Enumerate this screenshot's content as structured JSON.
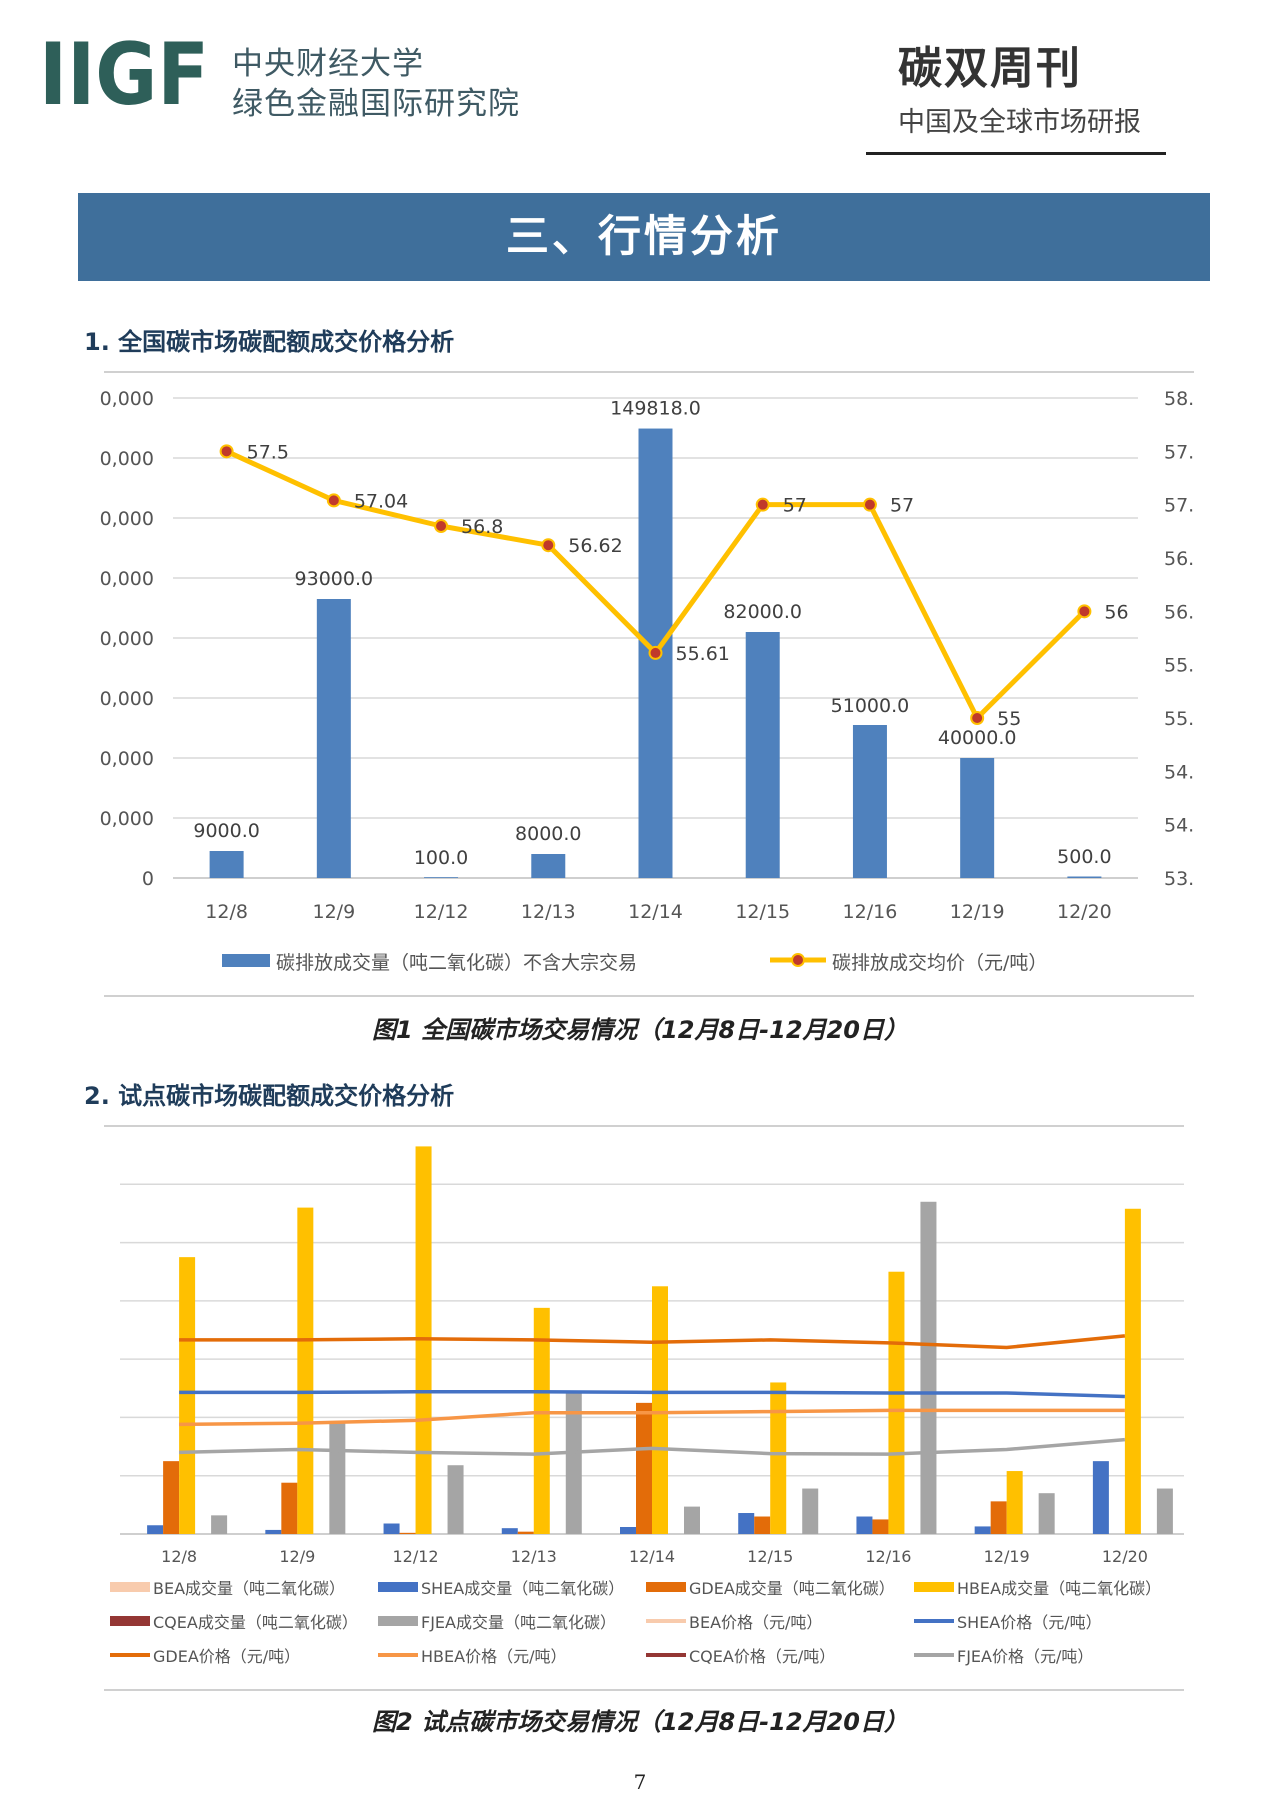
{
  "header": {
    "logo_text": "IIGF",
    "org_line1": "中央财经大学",
    "org_line2": "绿色金融国际研究院",
    "pub_title": "碳双周刊",
    "pub_subtitle": "中国及全球市场研报"
  },
  "section_banner": "三、行情分析",
  "section1_title": "1. 全国碳市场碳配额成交价格分析",
  "section2_title": "2. 试点碳市场碳配额成交价格分析",
  "fig1_caption": "图1 全国碳市场交易情况（12月8日-12月20日）",
  "fig2_caption": "图2 试点碳市场交易情况（12月8日-12月20日）",
  "page_number": "7",
  "colors": {
    "bar_blue": "#4f81bd",
    "line_yellow": "#ffc000",
    "point_red": "#c0392b",
    "banner": "#3f6f9b"
  },
  "chart_data": [
    {
      "type": "bar",
      "categories": [
        "12/8",
        "12/9",
        "12/12",
        "12/13",
        "12/14",
        "12/15",
        "12/16",
        "12/19",
        "12/20"
      ],
      "left_axis_ticks": [
        "0,000",
        "0,000",
        "0,000",
        "0,000",
        "0,000",
        "0,000",
        "0,000",
        "0,000",
        "0"
      ],
      "right_axis_ticks": [
        "58.",
        "57.",
        "57.",
        "56.",
        "56.",
        "55.",
        "55.",
        "54.",
        "54.",
        "53."
      ],
      "ylim_left": [
        0,
        160000
      ],
      "ylim_right": [
        53.5,
        58.0
      ],
      "series": [
        {
          "name": "碳排放成交量（吨二氧化碳）不含大宗交易",
          "kind": "bar",
          "values": [
            9000,
            93000,
            100,
            8000,
            149818,
            82000,
            51000,
            40000,
            500
          ],
          "labels": [
            "9000.0",
            "93000.0",
            "100.0",
            "8000.0",
            "149818.0",
            "82000.0",
            "51000.0",
            "40000.0",
            "500.0"
          ]
        },
        {
          "name": "碳排放成交均价（元/吨）",
          "kind": "line",
          "values": [
            57.5,
            57.04,
            56.8,
            56.62,
            55.61,
            57,
            57,
            55,
            56
          ],
          "labels": [
            "57.5",
            "57.04",
            "56.8",
            "56.62",
            "55.61",
            "57",
            "57",
            "55",
            "56"
          ]
        }
      ],
      "grid": true,
      "legend_position": "bottom"
    },
    {
      "type": "bar",
      "categories": [
        "12/8",
        "12/9",
        "12/12",
        "12/13",
        "12/14",
        "12/15",
        "12/16",
        "12/19",
        "12/20"
      ],
      "ylim": [
        0,
        7
      ],
      "bar_series": [
        {
          "name": "BEA成交量（吨二氧化碳）",
          "color": "#f8cbad",
          "values": [
            0,
            0,
            0,
            0,
            0,
            0,
            0,
            0,
            0
          ]
        },
        {
          "name": "SHEA成交量（吨二氧化碳）",
          "color": "#4472c4",
          "values": [
            0.15,
            0.07,
            0.18,
            0.1,
            0.12,
            0.36,
            0.3,
            0.13,
            1.25
          ]
        },
        {
          "name": "GDEA成交量（吨二氧化碳）",
          "color": "#e36c09",
          "values": [
            1.25,
            0.88,
            0.02,
            0.04,
            2.25,
            0.3,
            0.25,
            0.56,
            0
          ]
        },
        {
          "name": "HBEA成交量（吨二氧化碳）",
          "color": "#ffc000",
          "values": [
            4.75,
            5.6,
            6.65,
            3.88,
            4.25,
            2.6,
            4.5,
            1.08,
            5.58
          ]
        },
        {
          "name": "CQEA成交量（吨二氧化碳）",
          "color": "#943634",
          "values": [
            0,
            0,
            0,
            0,
            0,
            0,
            0,
            0,
            0
          ]
        },
        {
          "name": "FJEA成交量（吨二氧化碳）",
          "color": "#a5a5a5",
          "values": [
            0.32,
            1.9,
            1.18,
            2.42,
            0.47,
            0.78,
            5.7,
            0.7,
            0.78
          ]
        }
      ],
      "line_series": [
        {
          "name": "BEA价格（元/吨）",
          "color": "#f8cbad",
          "values": []
        },
        {
          "name": "SHEA价格（元/吨）",
          "color": "#4472c4",
          "values": [
            2.43,
            2.43,
            2.44,
            2.44,
            2.43,
            2.43,
            2.42,
            2.42,
            2.36
          ]
        },
        {
          "name": "GDEA价格（元/吨）",
          "color": "#e36c09",
          "values": [
            3.33,
            3.33,
            3.35,
            3.33,
            3.29,
            3.33,
            3.28,
            3.2,
            3.4
          ]
        },
        {
          "name": "HBEA价格（元/吨）",
          "color": "#f79646",
          "values": [
            1.88,
            1.9,
            1.95,
            2.08,
            2.08,
            2.1,
            2.12,
            2.12,
            2.12
          ]
        },
        {
          "name": "CQEA价格（元/吨）",
          "color": "#943634",
          "values": []
        },
        {
          "name": "FJEA价格（元/吨）",
          "color": "#a5a5a5",
          "values": [
            1.4,
            1.45,
            1.4,
            1.37,
            1.47,
            1.38,
            1.37,
            1.45,
            1.62
          ]
        }
      ],
      "grid": true,
      "legend_position": "bottom"
    }
  ]
}
